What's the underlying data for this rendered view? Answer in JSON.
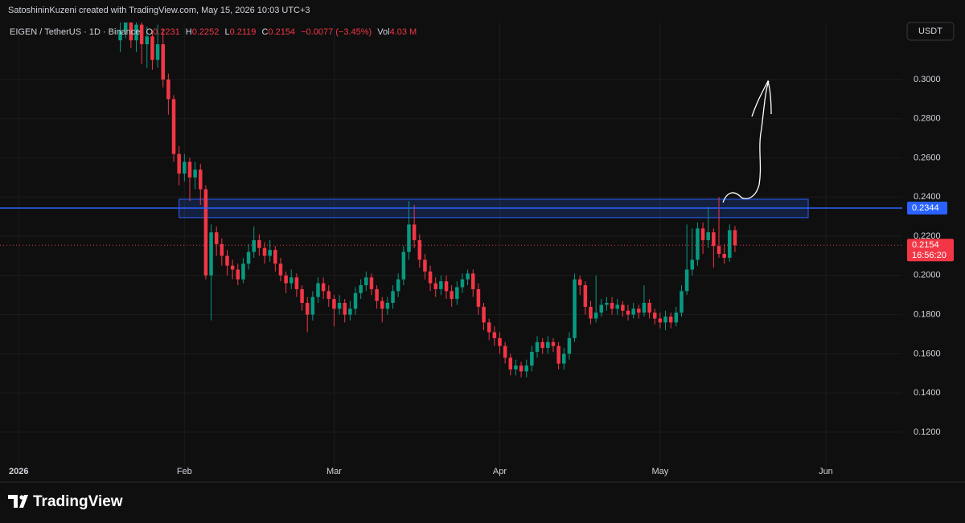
{
  "header": {
    "credit": "SatoshininKuzeni created with TradingView.com, May 15, 2026 10:03 UTC+3"
  },
  "legend": {
    "symbol": "EIGEN / TetherUS · 1D · Binance",
    "o_label": "O",
    "o": 0.2231,
    "h_label": "H",
    "h": 0.2252,
    "l_label": "L",
    "l": 0.2119,
    "c_label": "C",
    "c": 0.2154,
    "change": "−0.0077 (−3.45%)",
    "vol_label": "Vol",
    "vol": "4.03 M"
  },
  "currency_button": "USDT",
  "footer": {
    "brand": "TradingView"
  },
  "chart_data": {
    "type": "candlestick",
    "up_color": "#089981",
    "down_color": "#f23645",
    "grid": true,
    "xlim": [
      -22.5,
      146.3
    ],
    "xticks": [
      {
        "value": -19,
        "label": "2026"
      },
      {
        "value": 12,
        "label": "Feb"
      },
      {
        "value": 40,
        "label": "Mar"
      },
      {
        "value": 71,
        "label": "Apr"
      },
      {
        "value": 101,
        "label": "May"
      },
      {
        "value": 132,
        "label": "Jun"
      }
    ],
    "ylim": [
      0.1007,
      0.3291
    ],
    "yticks": [
      {
        "value": 0.12,
        "label": "0.1200"
      },
      {
        "value": 0.14,
        "label": "0.1400"
      },
      {
        "value": 0.16,
        "label": "0.1600"
      },
      {
        "value": 0.18,
        "label": "0.1800"
      },
      {
        "value": 0.2,
        "label": "0.2000"
      },
      {
        "value": 0.22,
        "label": "0.2200"
      },
      {
        "value": 0.24,
        "label": "0.2400"
      },
      {
        "value": 0.26,
        "label": "0.2600"
      },
      {
        "value": 0.28,
        "label": "0.2800"
      },
      {
        "value": 0.3,
        "label": "0.3000"
      }
    ],
    "x": [
      0,
      1,
      2,
      3,
      4,
      5,
      6,
      7,
      8,
      9,
      10,
      11,
      12,
      13,
      14,
      15,
      16,
      17,
      18,
      19,
      20,
      21,
      22,
      23,
      24,
      25,
      26,
      27,
      28,
      29,
      30,
      31,
      32,
      33,
      34,
      35,
      36,
      37,
      38,
      39,
      40,
      41,
      42,
      43,
      44,
      45,
      46,
      47,
      48,
      49,
      50,
      51,
      52,
      53,
      54,
      55,
      56,
      57,
      58,
      59,
      60,
      61,
      62,
      63,
      64,
      65,
      66,
      67,
      68,
      69,
      70,
      71,
      72,
      73,
      74,
      75,
      76,
      77,
      78,
      79,
      80,
      81,
      82,
      83,
      84,
      85,
      86,
      87,
      88,
      89,
      90,
      91,
      92,
      93,
      94,
      95,
      96,
      97,
      98,
      99,
      100,
      101,
      102,
      103,
      104,
      105,
      106,
      107,
      108,
      109,
      110,
      111,
      112,
      113,
      114,
      115
    ],
    "open": [
      0.32,
      0.325,
      0.33,
      0.32,
      0.328,
      0.318,
      0.322,
      0.31,
      0.318,
      0.3,
      0.29,
      0.262,
      0.252,
      0.258,
      0.25,
      0.254,
      0.244,
      0.2,
      0.222,
      0.216,
      0.21,
      0.205,
      0.203,
      0.198,
      0.206,
      0.212,
      0.218,
      0.214,
      0.21,
      0.213,
      0.206,
      0.2,
      0.196,
      0.199,
      0.193,
      0.186,
      0.18,
      0.189,
      0.196,
      0.192,
      0.188,
      0.183,
      0.186,
      0.18,
      0.183,
      0.191,
      0.195,
      0.199,
      0.193,
      0.187,
      0.183,
      0.186,
      0.192,
      0.198,
      0.212,
      0.226,
      0.218,
      0.208,
      0.202,
      0.196,
      0.193,
      0.197,
      0.192,
      0.188,
      0.194,
      0.198,
      0.201,
      0.193,
      0.184,
      0.176,
      0.171,
      0.168,
      0.164,
      0.158,
      0.152,
      0.154,
      0.151,
      0.154,
      0.161,
      0.166,
      0.163,
      0.166,
      0.164,
      0.155,
      0.16,
      0.168,
      0.198,
      0.195,
      0.184,
      0.178,
      0.181,
      0.185,
      0.186,
      0.183,
      0.185,
      0.182,
      0.18,
      0.183,
      0.181,
      0.186,
      0.181,
      0.178,
      0.176,
      0.179,
      0.176,
      0.181,
      0.192,
      0.203,
      0.208,
      0.224,
      0.218,
      0.222,
      0.215,
      0.211,
      0.209,
      0.2231
    ],
    "high": [
      0.331,
      0.334,
      0.333,
      0.332,
      0.331,
      0.327,
      0.325,
      0.328,
      0.326,
      0.303,
      0.292,
      0.266,
      0.262,
      0.26,
      0.258,
      0.257,
      0.246,
      0.226,
      0.225,
      0.219,
      0.213,
      0.208,
      0.206,
      0.209,
      0.216,
      0.225,
      0.221,
      0.217,
      0.218,
      0.215,
      0.209,
      0.202,
      0.203,
      0.201,
      0.195,
      0.189,
      0.192,
      0.199,
      0.199,
      0.195,
      0.19,
      0.19,
      0.188,
      0.187,
      0.194,
      0.198,
      0.202,
      0.201,
      0.195,
      0.189,
      0.189,
      0.195,
      0.201,
      0.215,
      0.238,
      0.236,
      0.221,
      0.211,
      0.205,
      0.199,
      0.2,
      0.2,
      0.195,
      0.197,
      0.201,
      0.203,
      0.203,
      0.196,
      0.186,
      0.178,
      0.174,
      0.171,
      0.166,
      0.16,
      0.157,
      0.156,
      0.157,
      0.164,
      0.169,
      0.168,
      0.169,
      0.168,
      0.166,
      0.163,
      0.171,
      0.201,
      0.2,
      0.197,
      0.187,
      0.2,
      0.188,
      0.189,
      0.189,
      0.188,
      0.187,
      0.185,
      0.186,
      0.185,
      0.195,
      0.188,
      0.183,
      0.181,
      0.182,
      0.181,
      0.184,
      0.195,
      0.226,
      0.224,
      0.227,
      0.227,
      0.235,
      0.224,
      0.24,
      0.216,
      0.226,
      0.2252
    ],
    "low": [
      0.314,
      0.321,
      0.316,
      0.314,
      0.308,
      0.306,
      0.305,
      0.306,
      0.296,
      0.282,
      0.258,
      0.246,
      0.248,
      0.238,
      0.244,
      0.236,
      0.198,
      0.177,
      0.21,
      0.205,
      0.2,
      0.198,
      0.195,
      0.196,
      0.203,
      0.209,
      0.21,
      0.206,
      0.207,
      0.202,
      0.197,
      0.191,
      0.193,
      0.189,
      0.182,
      0.171,
      0.177,
      0.186,
      0.188,
      0.184,
      0.174,
      0.18,
      0.176,
      0.177,
      0.18,
      0.188,
      0.192,
      0.19,
      0.183,
      0.176,
      0.18,
      0.183,
      0.189,
      0.195,
      0.208,
      0.214,
      0.204,
      0.198,
      0.192,
      0.189,
      0.19,
      0.188,
      0.184,
      0.185,
      0.191,
      0.195,
      0.189,
      0.18,
      0.172,
      0.167,
      0.164,
      0.16,
      0.155,
      0.149,
      0.149,
      0.148,
      0.148,
      0.151,
      0.158,
      0.16,
      0.16,
      0.161,
      0.152,
      0.152,
      0.157,
      0.166,
      0.19,
      0.18,
      0.175,
      0.176,
      0.179,
      0.182,
      0.18,
      0.18,
      0.179,
      0.177,
      0.178,
      0.178,
      0.179,
      0.178,
      0.175,
      0.173,
      0.172,
      0.173,
      0.174,
      0.179,
      0.19,
      0.2,
      0.205,
      0.211,
      0.214,
      0.204,
      0.209,
      0.206,
      0.207,
      0.2119
    ],
    "close": [
      0.325,
      0.33,
      0.32,
      0.328,
      0.318,
      0.322,
      0.31,
      0.318,
      0.3,
      0.29,
      0.262,
      0.252,
      0.258,
      0.25,
      0.254,
      0.244,
      0.2,
      0.222,
      0.216,
      0.21,
      0.205,
      0.203,
      0.198,
      0.206,
      0.212,
      0.218,
      0.214,
      0.21,
      0.213,
      0.206,
      0.2,
      0.196,
      0.199,
      0.193,
      0.186,
      0.18,
      0.189,
      0.196,
      0.192,
      0.188,
      0.183,
      0.186,
      0.18,
      0.183,
      0.191,
      0.195,
      0.199,
      0.193,
      0.187,
      0.183,
      0.186,
      0.192,
      0.198,
      0.212,
      0.226,
      0.218,
      0.208,
      0.202,
      0.196,
      0.193,
      0.197,
      0.192,
      0.188,
      0.194,
      0.198,
      0.201,
      0.193,
      0.184,
      0.176,
      0.171,
      0.168,
      0.164,
      0.158,
      0.152,
      0.154,
      0.151,
      0.154,
      0.161,
      0.166,
      0.163,
      0.166,
      0.164,
      0.155,
      0.16,
      0.168,
      0.198,
      0.195,
      0.184,
      0.178,
      0.181,
      0.185,
      0.186,
      0.183,
      0.185,
      0.182,
      0.18,
      0.183,
      0.181,
      0.186,
      0.181,
      0.178,
      0.176,
      0.179,
      0.176,
      0.181,
      0.192,
      0.203,
      0.208,
      0.224,
      0.218,
      0.222,
      0.215,
      0.211,
      0.209,
      0.2231,
      0.2154
    ],
    "zone": {
      "x": [
        11,
        128.7
      ],
      "y": [
        0.2295,
        0.2389
      ],
      "color": "#2962ff"
    },
    "level": 0.2344,
    "level_color": "#2962ff",
    "last_price": 0.2154,
    "countdown": "16:56:20"
  }
}
